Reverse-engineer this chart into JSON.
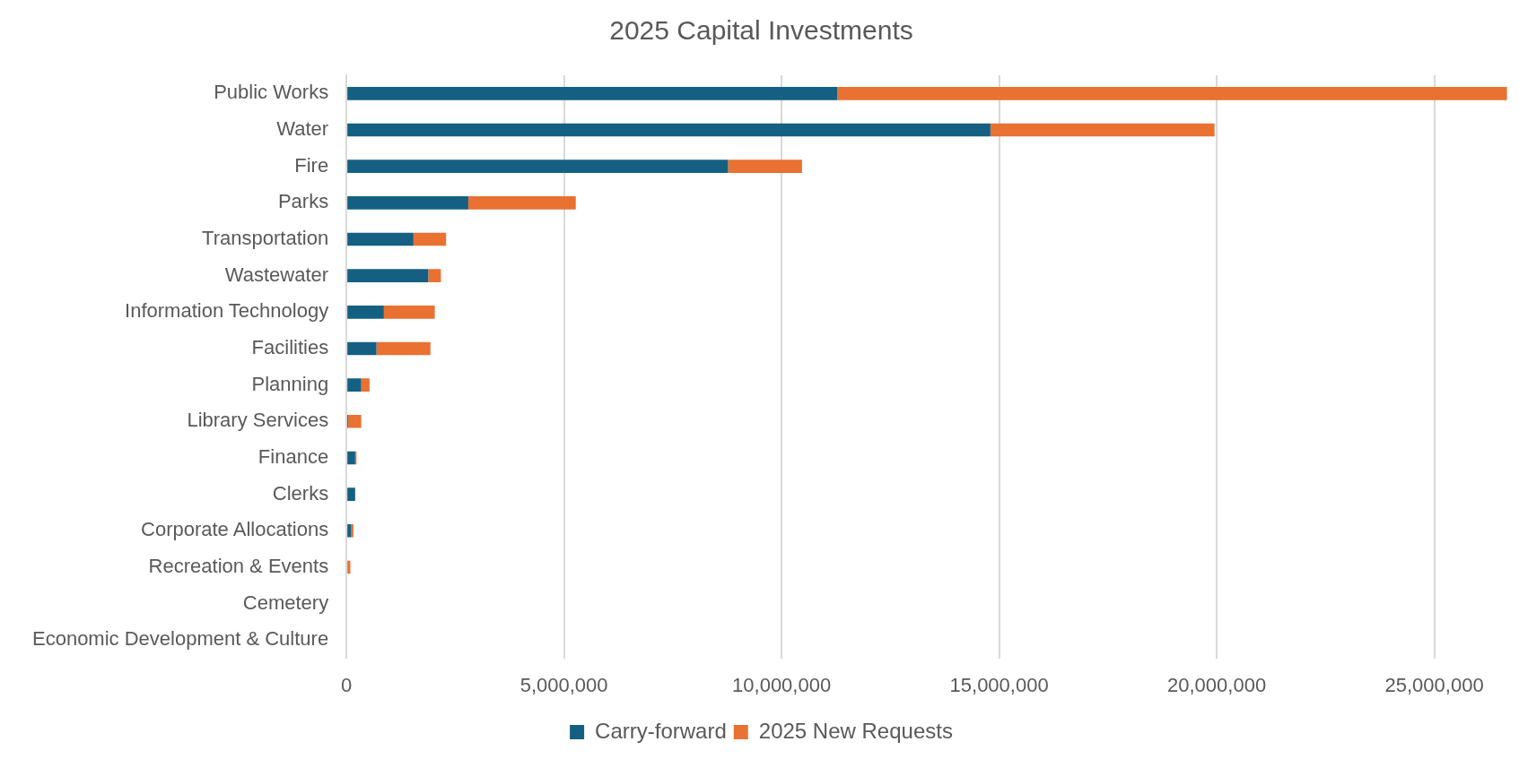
{
  "chart_data": {
    "type": "bar",
    "orientation": "horizontal",
    "stacked": true,
    "title": "2025 Capital Investments",
    "categories": [
      "Public Works",
      "Water",
      "Fire",
      "Parks",
      "Transportation",
      "Wastewater",
      "Information Technology",
      "Facilities",
      "Planning",
      "Library Services",
      "Finance",
      "Clerks",
      "Corporate Allocations",
      "Recreation & Events",
      "Cemetery",
      "Economic Development & Culture"
    ],
    "series": [
      {
        "name": "Carry-forward",
        "color": "#156082",
        "values": [
          11280000,
          14800000,
          8770000,
          2800000,
          1540000,
          1880000,
          860000,
          690000,
          340000,
          40000,
          200000,
          200000,
          110000,
          0,
          0,
          0
        ]
      },
      {
        "name": "2025 New Requests",
        "color": "#e97132",
        "values": [
          15390000,
          5150000,
          1700000,
          2470000,
          750000,
          290000,
          1170000,
          1240000,
          190000,
          300000,
          30000,
          0,
          50000,
          90000,
          null,
          null
        ]
      }
    ],
    "xlim": [
      0,
      26700000
    ],
    "xticks": [
      0,
      {
        "value": 5000000,
        "label": "5,000,000"
      },
      {
        "value": 10000000,
        "label": "10,000,000"
      },
      {
        "value": 15000000,
        "label": "15,000,000"
      },
      {
        "value": 20000000,
        "label": "20,000,000"
      },
      {
        "value": 25000000,
        "label": "25,000,000"
      }
    ],
    "grid": "x",
    "legend": "bottom"
  }
}
